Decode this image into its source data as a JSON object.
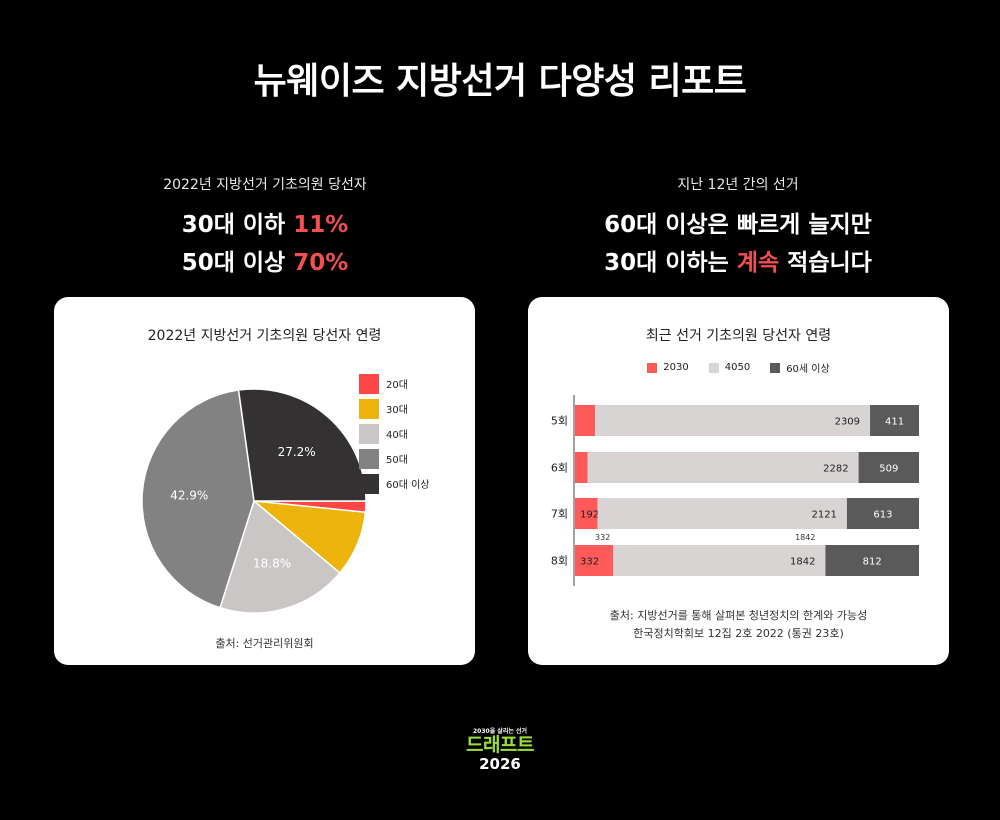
{
  "page": {
    "title": "뉴웨이즈 지방선거 다양성 리포트"
  },
  "left": {
    "subtitle": "2022년 지방선거 기초의원 당선자",
    "line1_prefix": "30대 이하 ",
    "line1_value": "11%",
    "line2_prefix": "50대 이상 ",
    "line2_value": "70%"
  },
  "right": {
    "subtitle": "지난 12년 간의 선거",
    "line1": "60대 이상은 빠르게 늘지만",
    "line2_prefix": "30대 이하는 ",
    "line2_highlight": "계속",
    "line2_suffix": " 적습니다"
  },
  "pie_card": {
    "title": "2022년 지방선거 기초의원 당선자 연령",
    "source": "출처: 선거관리위원회"
  },
  "bar_card": {
    "title": "최근 선거 기초의원 당선자 연령",
    "source_line1": "출처: 지방선거를 통해 살펴본 청년정치의 한계와 가능성",
    "source_line2": "한국정치학회보 12집 2호 2022 (통권 23호)"
  },
  "logo": {
    "tagline": "2030을 살리는 선거",
    "name": "드래프트",
    "year": "2026"
  },
  "colors": {
    "accent_red": "#f25050",
    "c20": "#ff4646",
    "c30": "#ecb40c",
    "c40": "#cac6c6",
    "c50": "#828282",
    "c60": "#333131",
    "bar2030": "#ff5a5a",
    "bar4050": "#d8d4d4",
    "bar60": "#5a5a5a"
  },
  "chart_data": [
    {
      "type": "pie",
      "title": "2022년 지방선거 기초의원 당선자 연령",
      "legend_position": "right",
      "slices": [
        {
          "label": "20대",
          "value": 1.6,
          "color": "#ff4646",
          "data_label": ""
        },
        {
          "label": "30대",
          "value": 9.5,
          "color": "#ecb40c",
          "data_label": ""
        },
        {
          "label": "40대",
          "value": 18.8,
          "color": "#cac6c6",
          "data_label": "18.8%"
        },
        {
          "label": "50대",
          "value": 42.9,
          "color": "#828282",
          "data_label": "42.9%"
        },
        {
          "label": "60대 이상",
          "value": 27.2,
          "color": "#333131",
          "data_label": "27.2%"
        }
      ]
    },
    {
      "type": "bar",
      "orientation": "horizontal",
      "stacked": true,
      "title": "최근 선거 기초의원 당선자 연령",
      "legend_position": "top",
      "categories": [
        "5회",
        "6회",
        "7회",
        "8회"
      ],
      "series": [
        {
          "name": "2030",
          "color": "#ff5a5a",
          "values": [
            168,
            107,
            192,
            332
          ]
        },
        {
          "name": "4050",
          "color": "#d8d4d4",
          "values": [
            2309,
            2282,
            2121,
            1842
          ]
        },
        {
          "name": "60세 이상",
          "color": "#5a5a5a",
          "values": [
            411,
            509,
            613,
            812
          ]
        }
      ],
      "extra_annotations": [
        {
          "category": "8회",
          "series": "2030",
          "text": "332"
        },
        {
          "category": "8회",
          "series": "4050",
          "text": "1842"
        }
      ]
    }
  ]
}
